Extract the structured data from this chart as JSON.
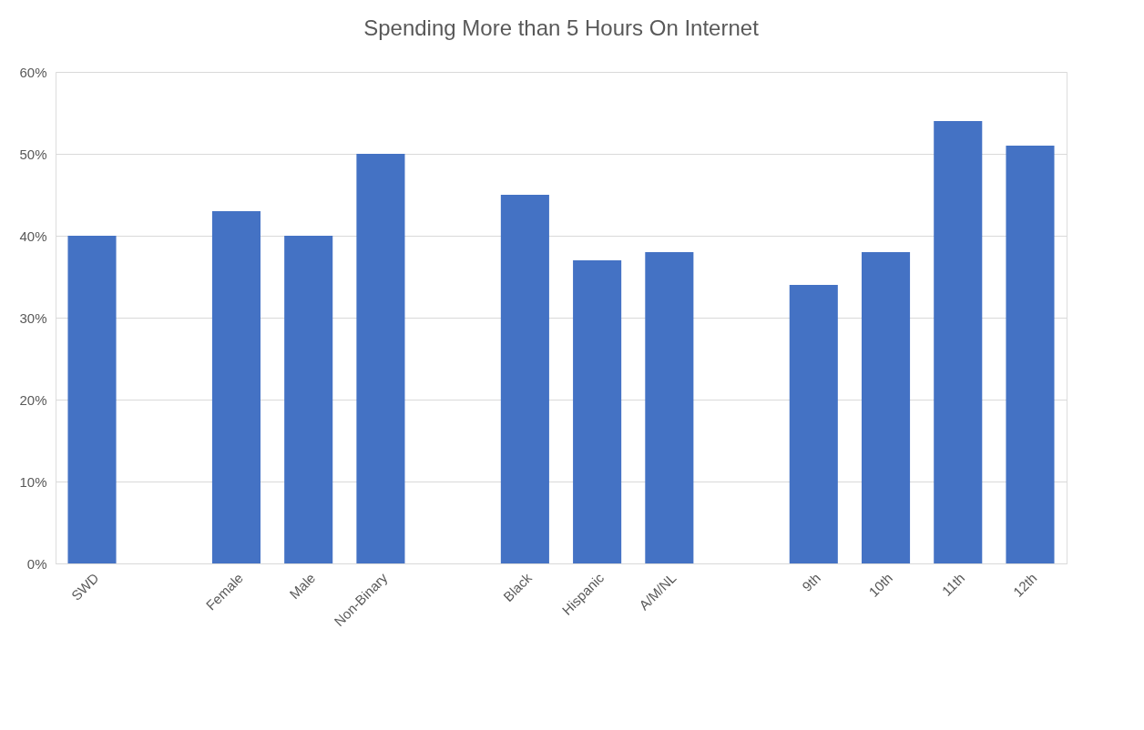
{
  "chart_data": {
    "type": "bar",
    "title": "Spending More than 5 Hours On Internet",
    "categories": [
      "SWD",
      null,
      "Female",
      "Male",
      "Non-Binary",
      null,
      "Black",
      "Hispanic",
      "A/M/NL",
      null,
      "9th",
      "10th",
      "11th",
      "12th"
    ],
    "values": [
      40,
      null,
      43,
      40,
      50,
      null,
      45,
      37,
      38,
      null,
      34,
      38,
      54,
      51
    ],
    "color": "#4472c4",
    "ylim": [
      0,
      60
    ],
    "yticks": [
      {
        "value": 0,
        "label": "0%"
      },
      {
        "value": 10,
        "label": "10%"
      },
      {
        "value": 20,
        "label": "20%"
      },
      {
        "value": 30,
        "label": "30%"
      },
      {
        "value": 40,
        "label": "40%"
      },
      {
        "value": 50,
        "label": "50%"
      },
      {
        "value": 60,
        "label": "60%"
      }
    ],
    "grid": "y"
  }
}
